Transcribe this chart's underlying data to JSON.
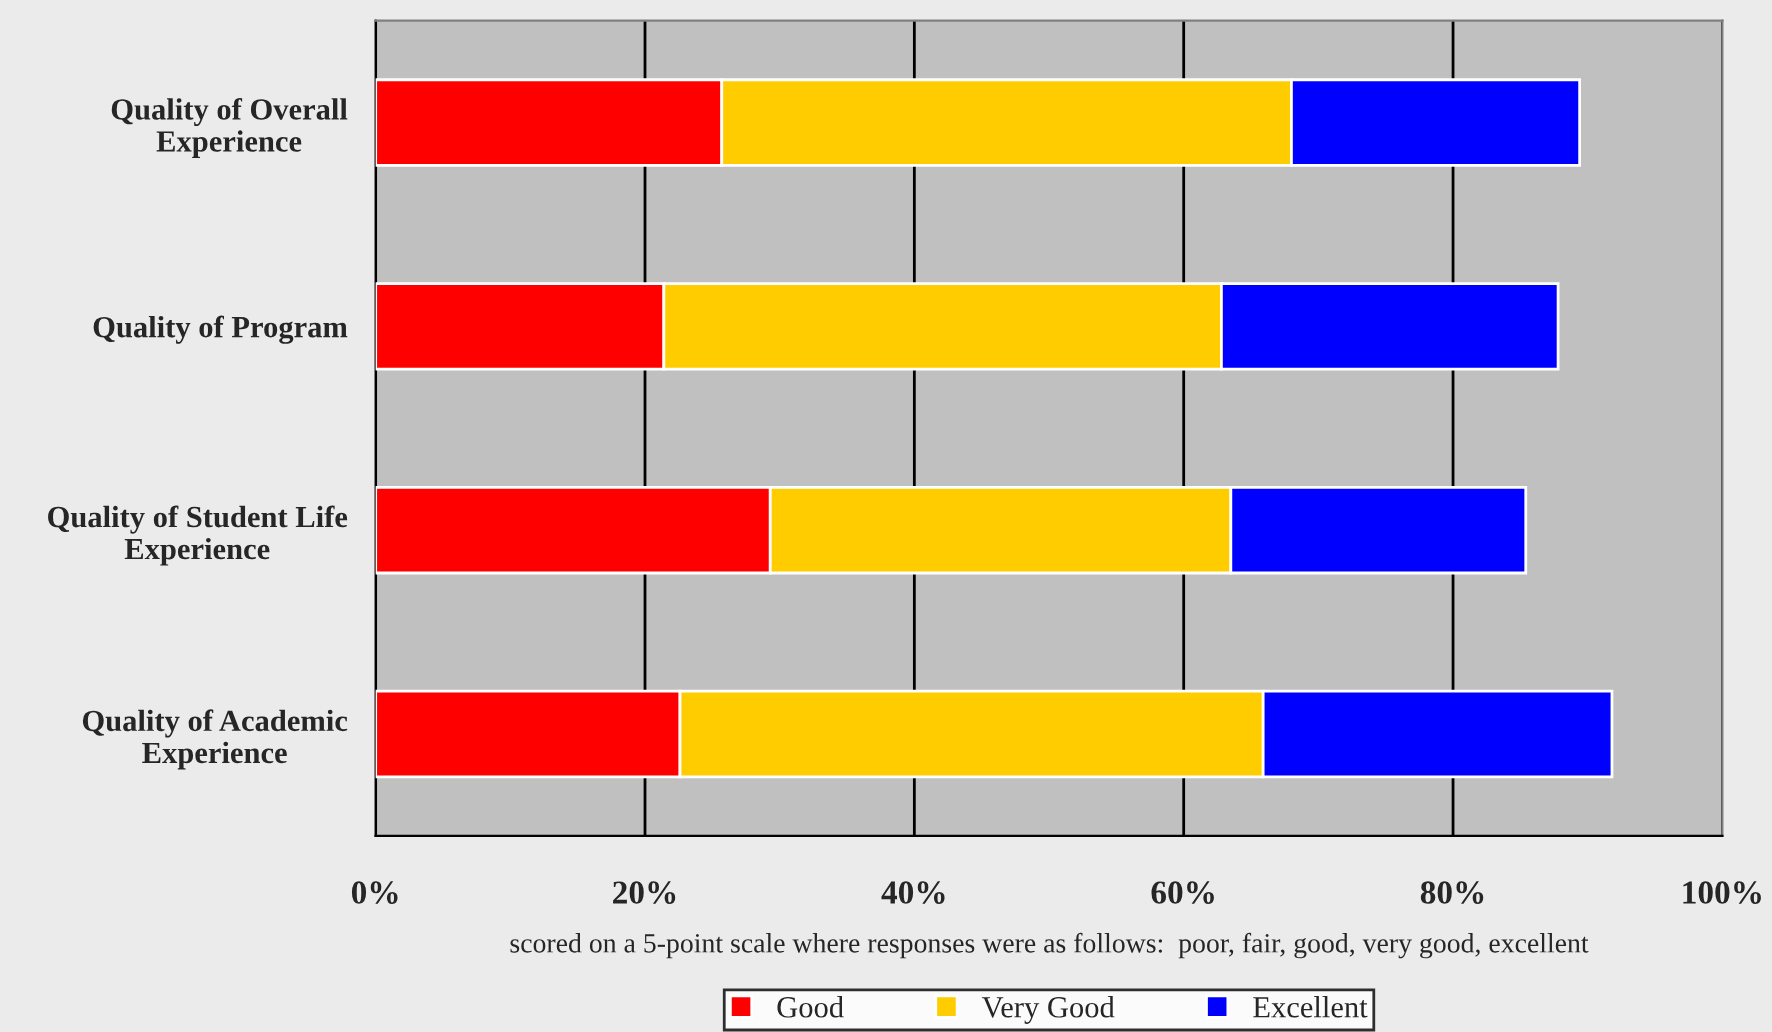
{
  "chart_data": {
    "type": "bar",
    "orientation": "horizontal",
    "stacked": true,
    "categories": [
      "Quality of Overall\nExperience",
      "Quality of Program",
      "Quality of Student Life\nExperience",
      "Quality of Academic\nExperience"
    ],
    "series": [
      {
        "name": "Good",
        "color": "#ff0000",
        "values": [
          25.7,
          21.4,
          29.3,
          22.6
        ]
      },
      {
        "name": "Very Good",
        "color": "#ffcc00",
        "values": [
          42.3,
          41.4,
          34.2,
          43.3
        ]
      },
      {
        "name": "Excellent",
        "color": "#0000ff",
        "values": [
          21.4,
          25.0,
          21.9,
          25.9
        ]
      }
    ],
    "xlim": [
      0,
      100
    ],
    "xticks": [
      {
        "value": 0,
        "label": "0%"
      },
      {
        "value": 20,
        "label": "20%"
      },
      {
        "value": 40,
        "label": "40%"
      },
      {
        "value": 60,
        "label": "60%"
      },
      {
        "value": 80,
        "label": "80%"
      },
      {
        "value": 100,
        "label": "100%"
      }
    ],
    "xlabel": "scored on a 5-point scale where responses were as follows:  poor, fair, good, very good, excellent",
    "grid": "x",
    "legend": "bottom"
  }
}
